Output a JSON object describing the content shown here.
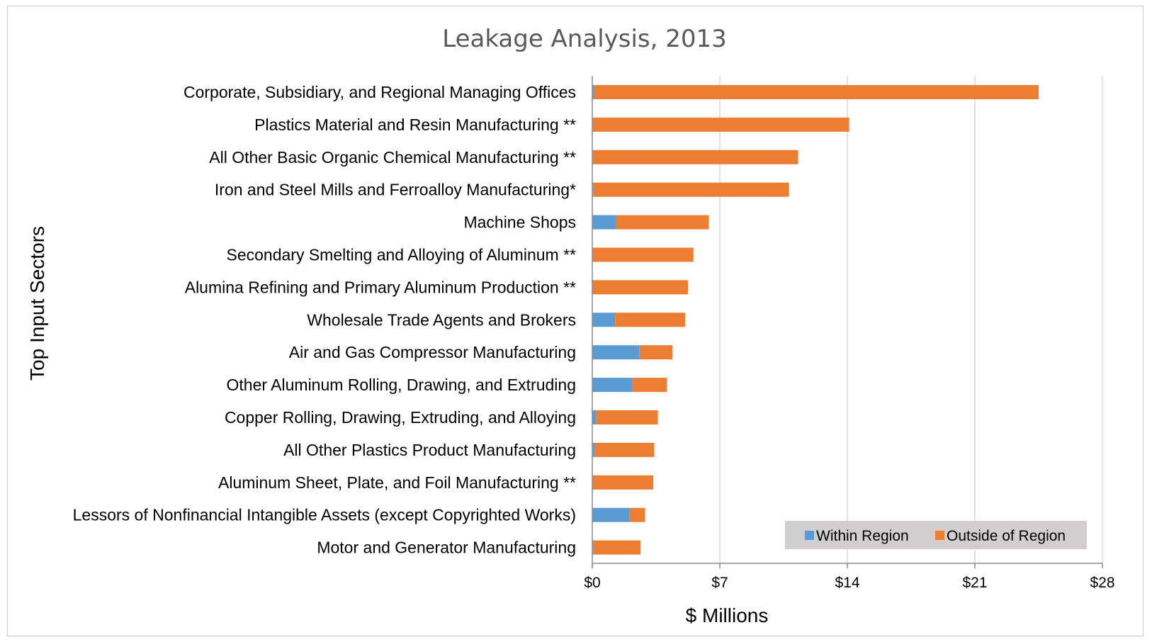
{
  "chart_data": {
    "type": "bar",
    "orientation": "horizontal",
    "stacked": true,
    "title": "Leakage Analysis, 2013",
    "xlabel": "$ Millions",
    "ylabel": "Top Input Sectors",
    "xlim": [
      0,
      28
    ],
    "xticks": [
      0,
      7,
      14,
      21,
      28
    ],
    "xtick_labels": [
      "$0",
      "$7",
      "$14",
      "$21",
      "$28"
    ],
    "grid": true,
    "legend_position": "bottom-right",
    "categories": [
      "Corporate, Subsidiary, and Regional Managing Offices",
      "Plastics Material and Resin Manufacturing **",
      "All Other Basic Organic Chemical Manufacturing **",
      "Iron and Steel Mills and Ferroalloy Manufacturing*",
      "Machine Shops",
      "Secondary Smelting and Alloying of Aluminum **",
      "Alumina Refining and Primary Aluminum Production **",
      "Wholesale Trade Agents and Brokers",
      "Air and Gas Compressor Manufacturing",
      "Other Aluminum Rolling, Drawing, and Extruding",
      "Copper Rolling, Drawing, Extruding, and Alloying",
      "All Other Plastics Product Manufacturing",
      "Aluminum Sheet, Plate, and Foil Manufacturing **",
      "Lessors of Nonfinancial Intangible Assets (except Copyrighted Works)",
      "Motor and Generator Manufacturing"
    ],
    "series": [
      {
        "name": "Within Region",
        "color": "#5B9BD5",
        "values": [
          0.1,
          0,
          0,
          0.05,
          1.3,
          0,
          0,
          1.25,
          2.6,
          2.2,
          0.2,
          0.15,
          0,
          2.05,
          0.05
        ]
      },
      {
        "name": "Outside of Region",
        "color": "#ED7D31",
        "values": [
          24.4,
          14.1,
          11.3,
          10.75,
          5.1,
          5.55,
          5.25,
          3.85,
          1.8,
          1.9,
          3.4,
          3.25,
          3.35,
          0.85,
          2.6
        ]
      }
    ]
  }
}
